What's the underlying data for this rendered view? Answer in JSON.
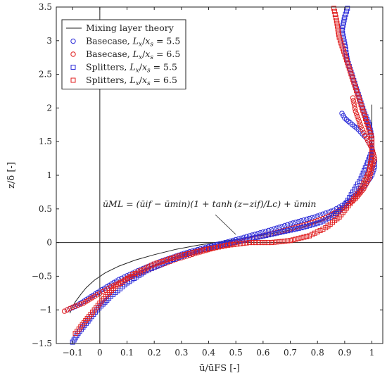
{
  "chart_data": {
    "type": "scatter",
    "title": "",
    "xlabel": "ū/ū_FS [-]",
    "ylabel": "z/δ [-]",
    "xlim": [
      -0.16,
      1.04
    ],
    "ylim": [
      -1.5,
      3.5
    ],
    "x_ticks": [
      -0.1,
      0,
      0.1,
      0.2,
      0.3,
      0.4,
      0.5,
      0.6,
      0.7,
      0.8,
      0.9,
      1
    ],
    "x_tick_labels": [
      "−0.1",
      "0",
      "0.1",
      "0.2",
      "0.3",
      "0.4",
      "0.5",
      "0.6",
      "0.7",
      "0.8",
      "0.9",
      "1"
    ],
    "y_ticks": [
      -1.5,
      -1,
      -0.5,
      0,
      0.5,
      1,
      1.5,
      2,
      2.5,
      3,
      3.5
    ],
    "y_tick_labels": [
      "−1.5",
      "−1",
      "−0.5",
      "0",
      "0.5",
      "1",
      "1.5",
      "2",
      "2.5",
      "3",
      "3.5"
    ],
    "grid": false,
    "reference_lines": {
      "x": 0,
      "y": 0
    },
    "legend_position": "top-left",
    "annotation": {
      "text": "ū_ML = (ū_if − ū_min)(1 + tanh((z−z_if)/L_c)) + ū_min",
      "display": "ūML = (ūif − ūmin)(1 + tanh (z−zif)/Lc) + ūmin",
      "arrow_to": [
        0.5,
        0.12
      ]
    },
    "series": [
      {
        "name": "Mixing layer theory",
        "mark": "line",
        "color": "#222222",
        "x": [
          -0.11,
          -0.1,
          -0.09,
          -0.07,
          -0.05,
          -0.02,
          0.02,
          0.07,
          0.13,
          0.2,
          0.28,
          0.36,
          0.44,
          0.52,
          0.6,
          0.68,
          0.75,
          0.81,
          0.86,
          0.9,
          0.93,
          0.96,
          0.98,
          0.99,
          1.0,
          1.0,
          1.0
        ],
        "y": [
          -1.05,
          -0.95,
          -0.88,
          -0.77,
          -0.67,
          -0.56,
          -0.45,
          -0.35,
          -0.26,
          -0.18,
          -0.1,
          -0.04,
          0.01,
          0.06,
          0.11,
          0.17,
          0.24,
          0.32,
          0.42,
          0.53,
          0.66,
          0.82,
          1.0,
          1.2,
          1.45,
          1.75,
          2.05
        ]
      },
      {
        "name": "Basecase, L_x/x_s = 5.5",
        "label_display": [
          "Basecase, ",
          "L",
          "x",
          "/",
          "x",
          "s",
          " = 5.5"
        ],
        "mark": "circle",
        "color": "#2a2ad8",
        "x": [
          -0.12,
          -0.09,
          -0.05,
          0.0,
          0.07,
          0.15,
          0.23,
          0.31,
          0.39,
          0.47,
          0.55,
          0.63,
          0.71,
          0.79,
          0.86,
          0.91,
          0.95,
          0.98,
          1.0,
          1.01,
          1.01,
          1.0,
          0.98,
          0.95,
          0.92,
          0.9,
          0.89
        ],
        "y": [
          -1.0,
          -0.95,
          -0.85,
          -0.72,
          -0.55,
          -0.4,
          -0.27,
          -0.16,
          -0.07,
          0.01,
          0.1,
          0.19,
          0.29,
          0.38,
          0.48,
          0.6,
          0.74,
          0.88,
          1.0,
          1.12,
          1.25,
          1.4,
          1.55,
          1.68,
          1.78,
          1.85,
          1.92
        ]
      },
      {
        "name": "Basecase, L_x/x_s = 6.5",
        "label_display": [
          "Basecase, ",
          "L",
          "x",
          "/",
          "x",
          "s",
          " = 6.5"
        ],
        "mark": "circle",
        "color": "#e01e1e",
        "x": [
          -0.13,
          -0.1,
          -0.06,
          -0.02,
          0.04,
          0.12,
          0.2,
          0.28,
          0.36,
          0.44,
          0.52,
          0.6,
          0.68,
          0.76,
          0.83,
          0.89,
          0.94,
          0.97,
          0.99,
          1.0,
          1.01,
          1.0,
          0.98,
          0.96,
          0.94,
          0.93
        ],
        "y": [
          -1.02,
          -0.96,
          -0.9,
          -0.8,
          -0.66,
          -0.5,
          -0.37,
          -0.25,
          -0.15,
          -0.06,
          0.02,
          0.1,
          0.18,
          0.27,
          0.37,
          0.5,
          0.65,
          0.8,
          0.95,
          1.1,
          1.25,
          1.4,
          1.55,
          1.72,
          1.95,
          2.15
        ]
      },
      {
        "name": "Splitters, L_x/x_s = 5.5",
        "label_display": [
          "Splitters, ",
          "L",
          "x",
          "/",
          "x",
          "s",
          " = 5.5"
        ],
        "mark": "square",
        "color": "#2a2ad8",
        "x": [
          -0.1,
          -0.08,
          -0.05,
          -0.01,
          0.04,
          0.1,
          0.17,
          0.25,
          0.33,
          0.41,
          0.5,
          0.58,
          0.66,
          0.74,
          0.81,
          0.86,
          0.9,
          0.93,
          0.96,
          0.98,
          1.0,
          1.0,
          0.99,
          0.97,
          0.95,
          0.93,
          0.91,
          0.9,
          0.89,
          0.9,
          0.91
        ],
        "y": [
          -1.48,
          -1.35,
          -1.2,
          -1.0,
          -0.8,
          -0.6,
          -0.42,
          -0.28,
          -0.16,
          -0.07,
          0.01,
          0.08,
          0.15,
          0.22,
          0.3,
          0.4,
          0.55,
          0.75,
          0.95,
          1.15,
          1.35,
          1.55,
          1.75,
          1.95,
          2.2,
          2.45,
          2.7,
          2.95,
          3.15,
          3.35,
          3.48
        ]
      },
      {
        "name": "Splitters, L_x/x_s = 6.5",
        "label_display": [
          "Splitters, ",
          "L",
          "x",
          "/",
          "x",
          "s",
          " = 6.5"
        ],
        "mark": "square",
        "color": "#e01e1e",
        "x": [
          -0.09,
          -0.07,
          -0.04,
          0.0,
          0.05,
          0.12,
          0.2,
          0.29,
          0.38,
          0.47,
          0.55,
          0.63,
          0.7,
          0.77,
          0.83,
          0.88,
          0.92,
          0.96,
          0.99,
          1.0,
          1.0,
          0.98,
          0.96,
          0.94,
          0.92,
          0.9,
          0.88,
          0.87,
          0.86
        ],
        "y": [
          -1.35,
          -1.25,
          -1.1,
          -0.9,
          -0.68,
          -0.48,
          -0.32,
          -0.2,
          -0.11,
          -0.04,
          0.0,
          0.0,
          0.03,
          0.1,
          0.22,
          0.38,
          0.58,
          0.8,
          1.05,
          1.3,
          1.55,
          1.8,
          2.05,
          2.3,
          2.55,
          2.8,
          3.05,
          3.3,
          3.48
        ]
      }
    ]
  }
}
